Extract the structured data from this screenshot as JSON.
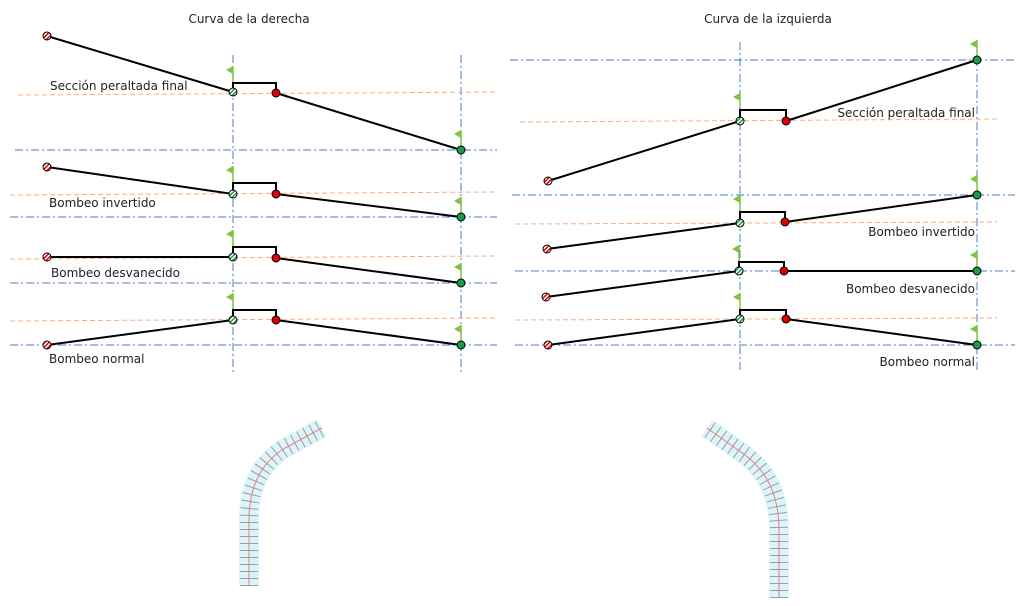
{
  "panels": [
    {
      "title": "Curva de la derecha",
      "rows": [
        {
          "label": "Sección peraltada final"
        },
        {
          "label": "Bombeo invertido"
        },
        {
          "label": "Bombeo desvanecido"
        },
        {
          "label": "Bombeo normal"
        }
      ]
    },
    {
      "title": "Curva de la izquierda",
      "rows": [
        {
          "label": "Sección peraltada final"
        },
        {
          "label": "Bombeo invertido"
        },
        {
          "label": "Bombeo desvanecido"
        },
        {
          "label": "Bombeo normal"
        }
      ]
    }
  ],
  "colors": {
    "profile_line": "#000000",
    "axis_dashdot": "#4a7cc4",
    "reference_dashed": "#f4b183",
    "edge_point": "#e00000",
    "pivot_point": "#1a9b4b",
    "flag": "#7dc243",
    "alignment_centerline": "#e88080",
    "alignment_edge": "#9fe0f0"
  }
}
